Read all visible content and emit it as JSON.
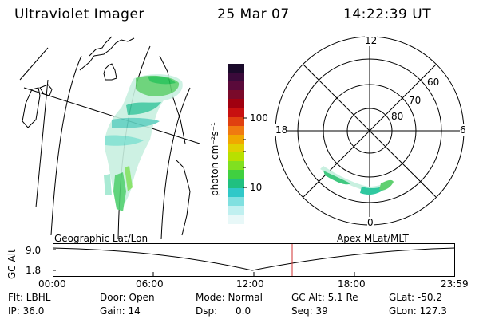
{
  "header": {
    "instrument": "Ultraviolet Imager",
    "date": "25 Mar 07",
    "time": "14:22:39 UT"
  },
  "colorbar": {
    "label": "photon cm⁻²s⁻¹",
    "ticks": [
      "100",
      "10"
    ],
    "colors": [
      "#1a0a2a",
      "#3a0a3a",
      "#5a0a3a",
      "#7a0a2a",
      "#a00010",
      "#c81010",
      "#e04010",
      "#f07a10",
      "#f0a800",
      "#e0d000",
      "#b8e000",
      "#80e020",
      "#40d040",
      "#20c080",
      "#30c8c8",
      "#80e0e0",
      "#c0f0f0",
      "#e8f8f8"
    ]
  },
  "polar": {
    "labels": {
      "top": "12",
      "left": "18",
      "right": "6",
      "bottom": "0"
    },
    "rings": [
      "60",
      "70",
      "80"
    ]
  },
  "panels": {
    "geo_label": "Geographic Lat/Lon",
    "apex_label": "Apex MLat/MLT"
  },
  "altitude_plot": {
    "ylabel": "GC Alt",
    "yticks": [
      "9.0",
      "1.8"
    ],
    "xticks": [
      "00:00",
      "06:00",
      "12:00",
      "18:00",
      "23:59"
    ]
  },
  "info": {
    "filter": "Flt: LBHL",
    "door": "Door: Open",
    "mode": "Mode: Normal",
    "gc_alt": "GC Alt: 5.1 Re",
    "glat": "GLat: -50.2",
    "ip": "IP: 36.0",
    "gain": "Gain: 14",
    "dsp_label": "Dsp:",
    "dsp_value": "0.0",
    "seq": "Seq: 39",
    "glon": "GLon: 127.3"
  }
}
